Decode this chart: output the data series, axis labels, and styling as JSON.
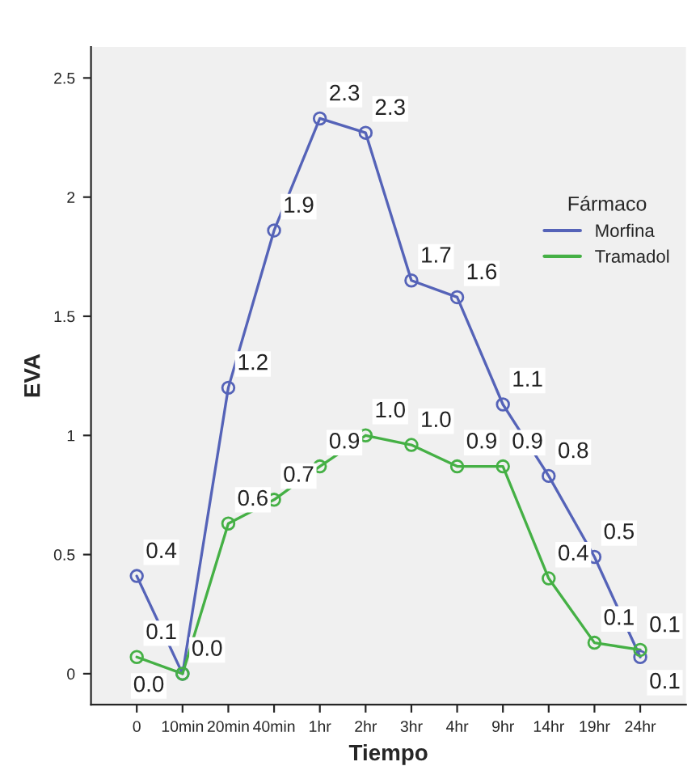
{
  "chart_data": {
    "type": "line",
    "xlabel": "Tiempo",
    "ylabel": "EVA",
    "legend_title": "Fármaco",
    "categories": [
      "0",
      "10min",
      "20min",
      "40min",
      "1hr",
      "2hr",
      "3hr",
      "4hr",
      "9hr",
      "14hr",
      "19hr",
      "24hr"
    ],
    "series": [
      {
        "name": "Morfina",
        "color": "#5563b8",
        "values": [
          0.41,
          0.0,
          1.2,
          1.86,
          2.33,
          2.27,
          1.65,
          1.58,
          1.13,
          0.83,
          0.49,
          0.07
        ],
        "value_labels": [
          "0.4",
          "0.0",
          "1.2",
          "1.9",
          "2.3",
          "2.3",
          "1.7",
          "1.6",
          "1.1",
          "0.8",
          "0.5",
          "0.1"
        ]
      },
      {
        "name": "Tramadol",
        "color": "#45b045",
        "values": [
          0.07,
          0.0,
          0.63,
          0.73,
          0.87,
          1.0,
          0.96,
          0.87,
          0.87,
          0.4,
          0.13,
          0.1
        ],
        "value_labels": [
          "0.1",
          "0.0",
          "0.6",
          "0.7",
          "0.9",
          "1.0",
          "1.0",
          "0.9",
          "0.9",
          "0.4",
          "0.1",
          "0.1"
        ]
      }
    ],
    "ylim": [
      -0.13,
      2.63
    ],
    "yticks": [
      0,
      0.5,
      1,
      1.5,
      2,
      2.5
    ],
    "marker": "circle",
    "line_style": "solid",
    "grid": false,
    "legend": "right"
  }
}
